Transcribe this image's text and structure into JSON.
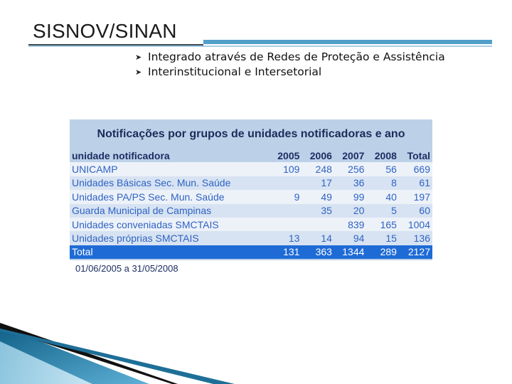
{
  "slide": {
    "title": "SISNOV/SINAN",
    "bullets": [
      "Integrado através de Redes de Proteção e Assistência",
      "Interinstitucional e Intersetorial"
    ]
  },
  "table": {
    "title": "Notificações por grupos de unidades notificadoras e ano",
    "headers": [
      "unidade notificadora",
      "2005",
      "2006",
      "2007",
      "2008",
      "Total"
    ],
    "rows": [
      [
        "UNICAMP",
        "109",
        "248",
        "256",
        "56",
        "669"
      ],
      [
        "Unidades Básicas Sec. Mun. Saúde",
        "",
        "17",
        "36",
        "8",
        "61"
      ],
      [
        "Unidades PA/PS Sec. Mun. Saúde",
        "9",
        "49",
        "99",
        "40",
        "197"
      ],
      [
        "Guarda Municipal de Campinas",
        "",
        "35",
        "20",
        "5",
        "60"
      ],
      [
        "Unidades conveniadas SMCTAIS",
        "",
        "",
        "839",
        "165",
        "1004"
      ],
      [
        "Unidades próprias SMCTAIS",
        "13",
        "14",
        "94",
        "15",
        "136"
      ]
    ],
    "total": [
      "Total",
      "131",
      "363",
      "1344",
      "289",
      "2127"
    ],
    "date_range": "01/06/2005 a 31/05/2008"
  },
  "colors": {
    "panel_bg": "#bcd1e8",
    "header_text": "#1c2d63",
    "row_text": "#2f63c4",
    "total_bg": "#1f6bd6",
    "accent_rule": "#4f9fc9"
  }
}
